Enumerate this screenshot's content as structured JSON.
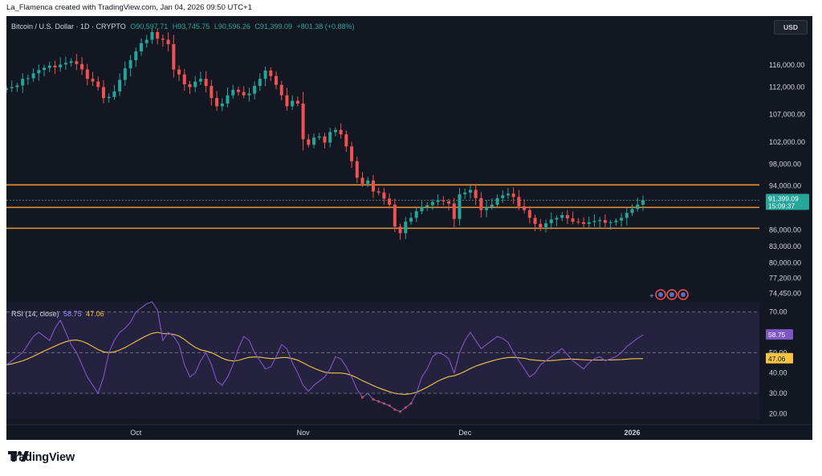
{
  "header": {
    "credit": "La_Flamenca created with TradingView.com, Jan 04, 2026 09:50 UTC+1"
  },
  "pane": {
    "title": "Bitcoin / U.S. Dollar · 1D · CRYPTO",
    "open": "O90,597.71",
    "high": "H93,745.75",
    "low": "L90,596.26",
    "close": "C91,399.09",
    "change": "+801.38 (+0.88%)",
    "currency_button": "USD"
  },
  "rsi": {
    "label": "RSI (14, close)",
    "value": "58.75",
    "ma_value": "47.06"
  },
  "brand": {
    "name": "TradingView",
    "logo_icon": "tradingview-logo-icon"
  },
  "chart_data": [
    {
      "type": "candlestick",
      "title": "Bitcoin / U.S. Dollar · 1D · CRYPTO",
      "ylim": [
        73500,
        122000
      ],
      "y_ticks": [
        "116,000.00",
        "112,000.00",
        "107,000.00",
        "102,000.00",
        "98,000.00",
        "94,000.00",
        "86,000.00",
        "83,000.00",
        "80,000.00",
        "77,200.00",
        "74,450.00"
      ],
      "x_ticks": [
        {
          "label": "Oct",
          "index": 24
        },
        {
          "label": "Nov",
          "index": 55
        },
        {
          "label": "Dec",
          "index": 85
        },
        {
          "label": "2026",
          "index": 116
        }
      ],
      "horizontal_levels": [
        94200,
        90100,
        86300
      ],
      "price_label": "91,399.09",
      "countdown_label": "15:09:37",
      "colors": {
        "up": "#26a69a",
        "down": "#ef5350",
        "level": "#e8943a",
        "price_label_bg": "#26a69a",
        "background": "#131722"
      },
      "closes": [
        111800,
        112000,
        112300,
        113500,
        113600,
        114500,
        115100,
        115500,
        115900,
        115600,
        116100,
        116400,
        116700,
        116200,
        115200,
        113500,
        113000,
        112000,
        110000,
        110200,
        111200,
        113300,
        115400,
        116900,
        118500,
        120000,
        120600,
        122000,
        120800,
        120600,
        119800,
        115200,
        114300,
        112500,
        112000,
        113000,
        113500,
        112200,
        110000,
        108500,
        109000,
        110500,
        111500,
        111100,
        110500,
        110800,
        112200,
        113500,
        115000,
        114000,
        112400,
        110500,
        108500,
        109500,
        109000,
        102500,
        101500,
        102800,
        103000,
        101900,
        103800,
        104200,
        103400,
        101200,
        98500,
        95500,
        94400,
        95000,
        93000,
        92800,
        91700,
        90600,
        86600,
        85400,
        87500,
        88200,
        89400,
        90200,
        90500,
        91100,
        91400,
        91200,
        90800,
        88000,
        92500,
        92800,
        93300,
        91800,
        89600,
        90200,
        90600,
        91800,
        92300,
        92600,
        92000,
        90300,
        89600,
        88200,
        87100,
        86500,
        87200,
        87900,
        88200,
        88700,
        88100,
        87500,
        87400,
        87100,
        87400,
        87600,
        87800,
        87300,
        87400,
        87700,
        88200,
        89100,
        89800,
        90600,
        91399
      ],
      "rsi": {
        "levels": [
          70,
          50,
          30
        ],
        "y_ticks": [
          "70.00",
          "50.00",
          "40.00",
          "30.00",
          "20.00"
        ],
        "values": [
          44,
          46,
          48,
          50,
          54,
          58,
          60,
          58,
          56,
          62,
          66,
          60,
          54,
          50,
          44,
          38,
          34,
          30,
          38,
          50,
          56,
          60,
          62,
          65,
          70,
          72,
          74,
          75,
          71,
          56,
          60,
          58,
          54,
          44,
          38,
          40,
          46,
          50,
          44,
          36,
          34,
          38,
          44,
          52,
          58,
          56,
          50,
          46,
          42,
          43,
          48,
          54,
          52,
          45,
          40,
          34,
          31,
          34,
          36,
          38,
          42,
          48,
          47,
          43,
          38,
          32,
          28,
          30,
          27,
          26,
          25,
          24,
          22,
          21,
          23,
          25,
          30,
          38,
          42,
          48,
          50,
          49,
          47,
          40,
          50,
          56,
          60,
          56,
          52,
          54,
          56,
          58,
          57,
          55,
          50,
          46,
          42,
          38,
          40,
          44,
          46,
          48,
          50,
          52,
          49,
          46,
          44,
          42,
          45,
          47,
          48,
          46,
          47,
          48,
          50,
          53,
          55,
          57,
          58.75
        ],
        "ma": [
          44,
          44.5,
          45.2,
          46,
          47,
          48.2,
          49.5,
          50.8,
          52,
          53.2,
          54.4,
          55.4,
          56,
          56.2,
          55.6,
          54.5,
          53,
          51.5,
          50.4,
          50,
          50.4,
          51.3,
          52.5,
          54,
          55.5,
          57,
          58.4,
          59.5,
          60,
          59.4,
          59.3,
          59,
          58.2,
          56.5,
          54.4,
          52.6,
          51.4,
          50.8,
          50,
          48.7,
          47.3,
          46.3,
          45.9,
          46.2,
          47,
          47.7,
          47.9,
          47.8,
          47.4,
          47.1,
          47.2,
          47.6,
          47.6,
          47.1,
          46.3,
          45,
          43.6,
          42.4,
          41.3,
          40.4,
          40,
          40,
          40,
          39.6,
          38.8,
          37.6,
          36.2,
          35,
          33.8,
          32.7,
          31.7,
          30.8,
          30,
          29.6,
          29.5,
          29.8,
          30.5,
          31.7,
          33,
          34.5,
          36,
          37.2,
          38.2,
          38.6,
          39.6,
          40.8,
          42.2,
          43.4,
          44.3,
          45.1,
          45.9,
          46.6,
          47.2,
          47.6,
          47.7,
          47.5,
          47.2,
          46.6,
          46.3,
          46.1,
          46,
          46.1,
          46.3,
          46.6,
          46.8,
          46.8,
          46.7,
          46.5,
          46.4,
          46.4,
          46.4,
          46.4,
          46.4,
          46.5,
          46.6,
          46.8,
          47,
          47.06,
          47.06
        ],
        "colors": {
          "rsi": "#7e57c2",
          "ma": "#f5c542",
          "rsi_label_bg": "#7e57c2",
          "ma_label_bg": "#f5c542"
        }
      }
    }
  ]
}
